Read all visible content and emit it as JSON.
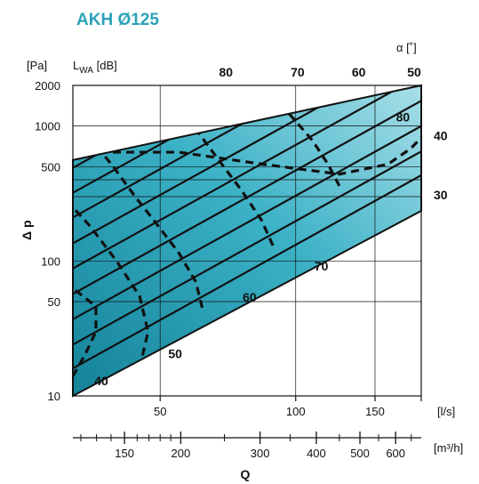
{
  "chart_data": {
    "type": "line",
    "title": "AKH  Ø125",
    "xlabel": "Q",
    "ylabel": "Δ p",
    "x_unit": "[l/s]",
    "x2_unit": "[m³/h]",
    "y_unit": "[Pa]",
    "lwa_label": "L",
    "lwa_sub": "WA",
    "lwa_unit": " [dB]",
    "alpha_label": "α [˚]",
    "x_scale": "log",
    "y_scale": "log",
    "xlim": [
      32,
      190
    ],
    "ylim": [
      10,
      2000
    ],
    "x_ticks": [
      {
        "v": 50,
        "label": "50"
      },
      {
        "v": 100,
        "label": "100"
      },
      {
        "v": 150,
        "label": "150"
      },
      {
        "v": 190,
        "label": ""
      }
    ],
    "y_ticks": [
      {
        "v": 10,
        "label": "10"
      },
      {
        "v": 50,
        "label": "50"
      },
      {
        "v": 100,
        "label": "100"
      },
      {
        "v": 500,
        "label": "500"
      },
      {
        "v": 1000,
        "label": "1000"
      },
      {
        "v": 2000,
        "label": "2000"
      }
    ],
    "x2_ticks": [
      {
        "v": 150,
        "label": "150"
      },
      {
        "v": 200,
        "label": "200"
      },
      {
        "v": 300,
        "label": "300"
      },
      {
        "v": 400,
        "label": "400"
      },
      {
        "v": 500,
        "label": "500"
      },
      {
        "v": 600,
        "label": "600"
      }
    ],
    "x2_minor": [
      120,
      130,
      140,
      160,
      170,
      180,
      190,
      250,
      350,
      450,
      550,
      650
    ],
    "band": {
      "lower_at_xmin": 10,
      "lower_at_xmax": 235,
      "upper_at_xmin": 560,
      "upper_at_xmax": 2000
    },
    "blade_lines": [
      {
        "x0": 32,
        "y0": 16
      },
      {
        "x0": 32,
        "y0": 24
      },
      {
        "x0": 32,
        "y0": 37
      },
      {
        "x0": 32,
        "y0": 57
      },
      {
        "x0": 32,
        "y0": 88
      },
      {
        "x0": 32,
        "y0": 135
      },
      {
        "x0": 32,
        "y0": 210
      },
      {
        "x0": 32,
        "y0": 320
      },
      {
        "x0": 32,
        "y0": 490
      }
    ],
    "blade_line_slope": 1.85,
    "alpha_labels": [
      {
        "label": "80",
        "x": 70,
        "y": 2000
      },
      {
        "label": "70",
        "x": 101,
        "y": 2000
      },
      {
        "label": "60",
        "x": 138,
        "y": 2000
      },
      {
        "label": "50",
        "x": 180,
        "y": 2000
      },
      {
        "label": "40",
        "x": 190,
        "y": 850
      },
      {
        "label": "30",
        "x": 190,
        "y": 310
      }
    ],
    "lwa_curves": [
      {
        "label": "40",
        "points": [
          [
            32,
            14
          ],
          [
            34,
            20
          ],
          [
            36,
            30
          ],
          [
            36,
            46
          ],
          [
            33,
            58
          ],
          [
            32,
            62
          ]
        ],
        "label_at": [
          37,
          12
        ]
      },
      {
        "label": "50",
        "points": [
          [
            45,
            16
          ],
          [
            47,
            30
          ],
          [
            45,
            55
          ],
          [
            40,
            100
          ],
          [
            35,
            180
          ],
          [
            32,
            250
          ]
        ],
        "label_at": [
          54,
          19
        ]
      },
      {
        "label": "60",
        "points": [
          [
            62,
            45
          ],
          [
            60,
            70
          ],
          [
            55,
            115
          ],
          [
            49,
            190
          ],
          [
            44,
            300
          ],
          [
            39,
            520
          ],
          [
            35,
            800
          ],
          [
            32,
            1050
          ]
        ],
        "label_at": [
          79,
          50
        ]
      },
      {
        "label": "70",
        "points": [
          [
            89,
            130
          ],
          [
            84,
            200
          ],
          [
            76,
            330
          ],
          [
            68,
            540
          ],
          [
            61,
            880
          ],
          [
            56,
            1400
          ],
          [
            53,
            1900
          ]
        ],
        "label_at": [
          114,
          85
        ]
      },
      {
        "label": "80",
        "points": [
          [
            125,
            360
          ],
          [
            118,
            520
          ],
          [
            109,
            780
          ],
          [
            99,
            1130
          ],
          [
            90,
            1600
          ],
          [
            84,
            2000
          ]
        ],
        "label_at": [
          173,
          1080
        ]
      }
    ],
    "dashed_edges": [
      {
        "points": [
          [
            32,
            640
          ],
          [
            55,
            640
          ],
          [
            85,
            520
          ],
          [
            125,
            440
          ],
          [
            160,
            520
          ],
          [
            180,
            680
          ],
          [
            190,
            820
          ]
        ]
      }
    ],
    "value_labels_60": "60",
    "value_labels_70": "70"
  }
}
